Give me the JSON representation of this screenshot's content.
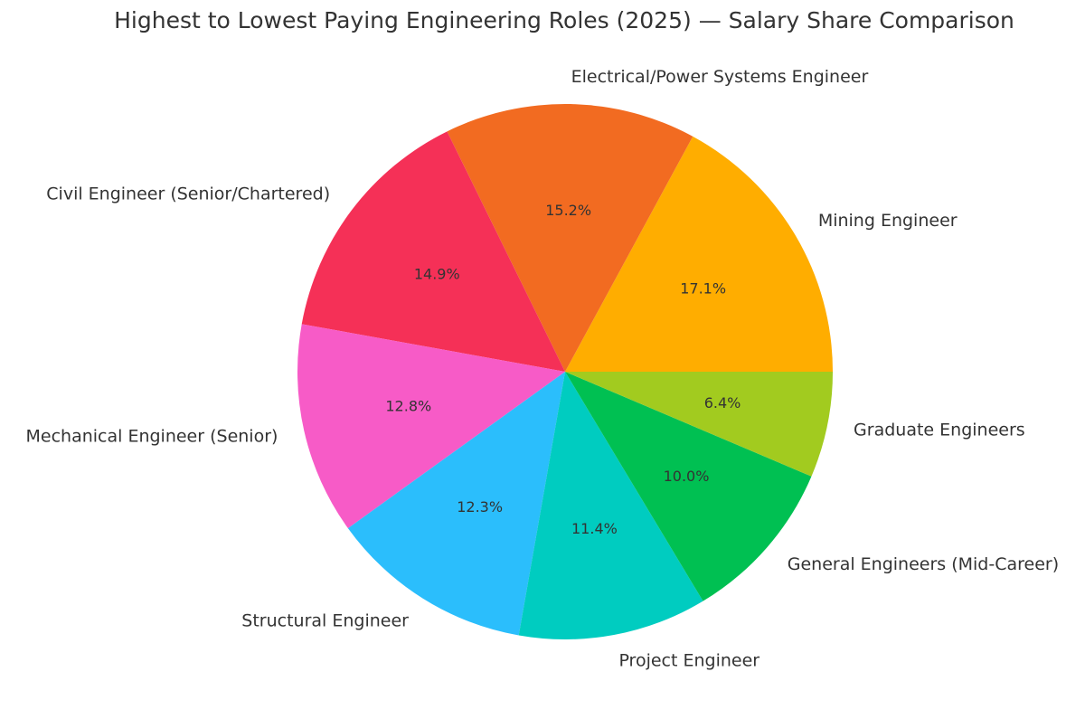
{
  "chart_data": {
    "type": "pie",
    "title": "Highest to Lowest Paying Engineering Roles (2025) — Salary Share Comparison",
    "categories": [
      "Mining Engineer",
      "Electrical/Power Systems Engineer",
      "Civil Engineer (Senior/Chartered)",
      "Mechanical Engineer (Senior)",
      "Structural Engineer",
      "Project Engineer",
      "General Engineers (Mid-Career)",
      "Graduate Engineers"
    ],
    "values": [
      17.1,
      15.2,
      14.9,
      12.8,
      12.3,
      11.4,
      10.0,
      6.4
    ],
    "value_labels": [
      "17.1%",
      "15.2%",
      "14.9%",
      "12.8%",
      "12.3%",
      "11.4%",
      "10.0%",
      "6.4%"
    ],
    "colors": [
      "#ffad00",
      "#f26b21",
      "#f53057",
      "#f75bc7",
      "#2bbefc",
      "#00ccc0",
      "#00c052",
      "#a2cb1f"
    ]
  }
}
